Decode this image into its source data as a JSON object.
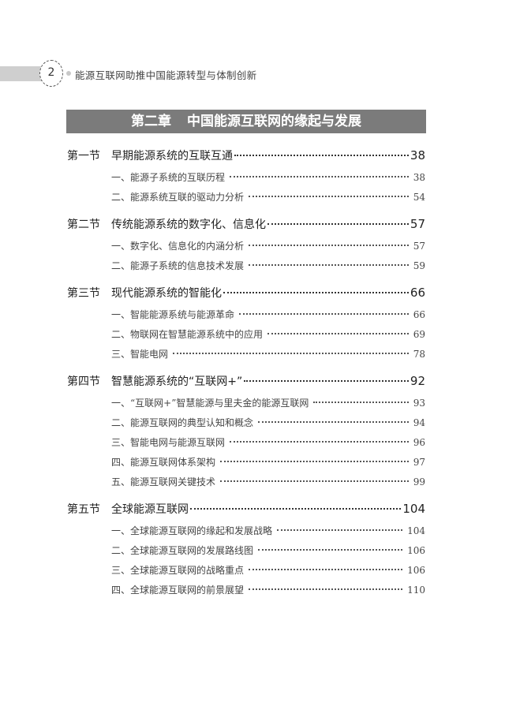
{
  "header": {
    "page_number": "2",
    "book_title": "能源互联网助推中国能源转型与体制创新"
  },
  "chapter": {
    "number": "第二章",
    "title": "中国能源互联网的缘起与发展"
  },
  "sections": [
    {
      "label": "第一节",
      "title": "早期能源系统的互联互通",
      "page": "38",
      "items": [
        {
          "title": "一、能源子系统的互联历程",
          "page": "38"
        },
        {
          "title": "二、能源系统互联的驱动力分析",
          "page": "54"
        }
      ]
    },
    {
      "label": "第二节",
      "title": "传统能源系统的数字化、信息化",
      "page": "57",
      "items": [
        {
          "title": "一、数字化、信息化的内涵分析",
          "page": "57"
        },
        {
          "title": "二、能源子系统的信息技术发展",
          "page": "59"
        }
      ]
    },
    {
      "label": "第三节",
      "title": "现代能源系统的智能化",
      "page": "66",
      "items": [
        {
          "title": "一、智能能源系统与能源革命",
          "page": "66"
        },
        {
          "title": "二、物联网在智慧能源系统中的应用",
          "page": "69"
        },
        {
          "title": "三、智能电网",
          "page": "78"
        }
      ]
    },
    {
      "label": "第四节",
      "title": "智慧能源系统的“互联网+”",
      "page": "92",
      "items": [
        {
          "title": "一、“互联网+”智慧能源与里夫金的能源互联网",
          "page": "93"
        },
        {
          "title": "二、能源互联网的典型认知和概念",
          "page": "94"
        },
        {
          "title": "三、智能电网与能源互联网",
          "page": "96"
        },
        {
          "title": "四、能源互联网体系架构",
          "page": "97"
        },
        {
          "title": "五、能源互联网关键技术",
          "page": "99"
        }
      ]
    },
    {
      "label": "第五节",
      "title": "全球能源互联网",
      "page": "104",
      "items": [
        {
          "title": "一、全球能源互联网的缘起和发展战略",
          "page": "104"
        },
        {
          "title": "二、全球能源互联网的发展路线图",
          "page": "106"
        },
        {
          "title": "三、全球能源互联网的战略重点",
          "page": "106"
        },
        {
          "title": "四、全球能源互联网的前景展望",
          "page": "110"
        }
      ]
    }
  ]
}
